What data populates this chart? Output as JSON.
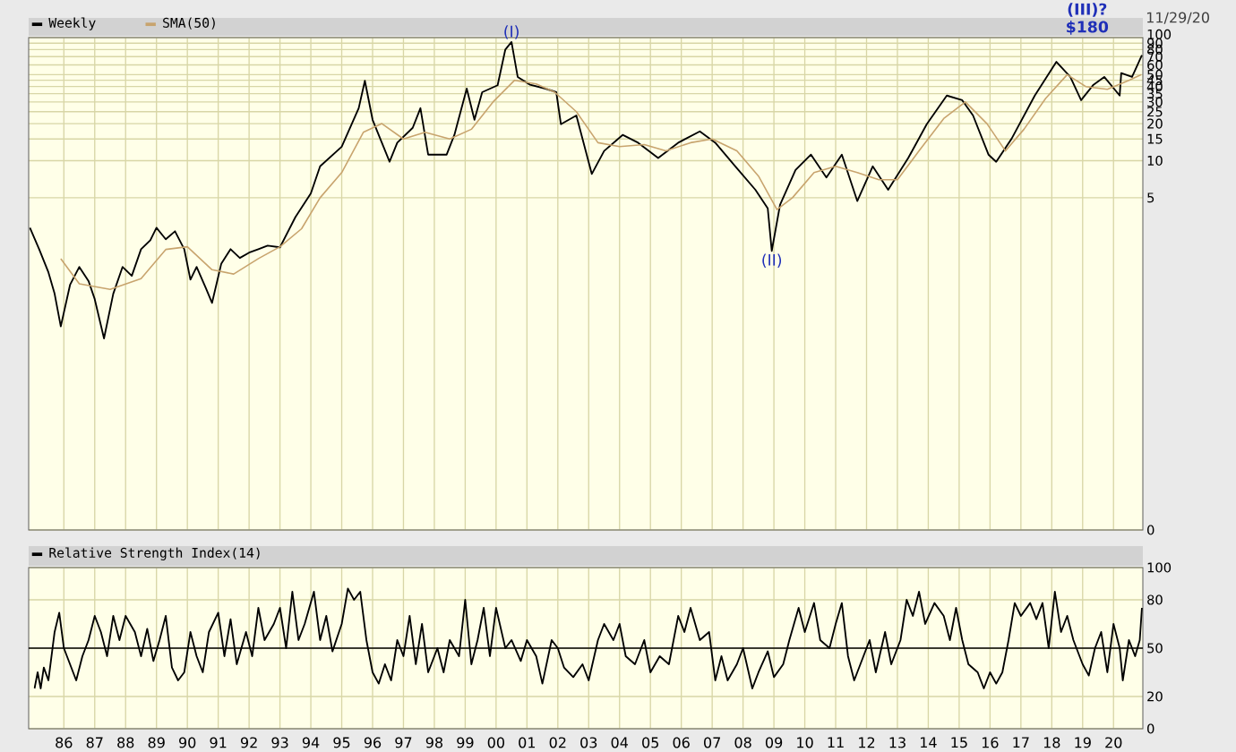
{
  "chart_data": [
    {
      "type": "line",
      "log": true,
      "grid": true,
      "tick_labels": "y",
      "legend": "top left",
      "xlim": [
        1984.86,
        2020.95
      ],
      "xticks": [
        1986,
        1987,
        1988,
        1989,
        1990,
        1991,
        1992,
        1993,
        1994,
        1995,
        1996,
        1997,
        1998,
        1999,
        2000,
        2001,
        2002,
        2003,
        2004,
        2005,
        2006,
        2007,
        2008,
        2009,
        2010,
        2011,
        2012,
        2013,
        2014,
        2015,
        2016,
        2017,
        2018,
        2019,
        2020
      ],
      "ylim": [
        0.01,
        100
      ],
      "yticks": [
        100,
        90,
        80,
        70,
        60,
        50,
        45,
        40,
        35,
        30,
        25,
        20,
        15,
        10,
        5,
        {
          "value": 0.01,
          "label": "0"
        }
      ],
      "series": [
        {
          "name": "Weekly",
          "color": "#000000",
          "x": [
            1984.9,
            1985.2,
            1985.5,
            1985.7,
            1985.9,
            1986.2,
            1986.5,
            1986.8,
            1987.0,
            1987.3,
            1987.6,
            1987.9,
            1988.2,
            1988.5,
            1988.8,
            1989.0,
            1989.3,
            1989.6,
            1989.9,
            1990.1,
            1990.3,
            1990.6,
            1990.8,
            1991.1,
            1991.4,
            1991.7,
            1992.0,
            1992.3,
            1992.6,
            1993.0,
            1993.5,
            1994.0,
            1994.3,
            1995.0,
            1995.55,
            1995.75,
            1996.0,
            1996.55,
            1996.8,
            1997.3,
            1997.55,
            1997.8,
            1998.4,
            1998.65,
            1999.05,
            1999.3,
            1999.55,
            2000.05,
            2000.3,
            2000.5,
            2000.7,
            2001.1,
            2001.6,
            2001.95,
            2002.1,
            2002.6,
            2003.1,
            2003.5,
            2004.1,
            2004.6,
            2005.25,
            2005.9,
            2006.6,
            2007.1,
            2007.75,
            2008.4,
            2008.8,
            2008.93,
            2009.2,
            2009.7,
            2010.2,
            2010.7,
            2011.2,
            2011.7,
            2012.2,
            2012.7,
            2013.35,
            2013.95,
            2014.6,
            2015.1,
            2015.45,
            2015.95,
            2016.2,
            2016.7,
            2017.45,
            2018.15,
            2018.6,
            2018.95,
            2019.35,
            2019.7,
            2020.2,
            2020.25,
            2020.6,
            2020.92
          ],
          "values": [
            2.85,
            1.91,
            1.24,
            0.83,
            0.45,
            0.98,
            1.37,
            1.05,
            0.75,
            0.36,
            0.83,
            1.37,
            1.16,
            1.91,
            2.26,
            2.85,
            2.3,
            2.67,
            1.91,
            1.08,
            1.37,
            0.92,
            0.7,
            1.46,
            1.91,
            1.62,
            1.79,
            1.91,
            2.04,
            1.98,
            3.48,
            5.43,
            9.0,
            13.0,
            26.7,
            44.6,
            21.5,
            9.8,
            14.0,
            18.5,
            26.7,
            11.2,
            11.2,
            16.2,
            38.5,
            21.5,
            36,
            41,
            80,
            92,
            47.9,
            41.4,
            38.5,
            36,
            19.8,
            23.3,
            7.8,
            12,
            16.2,
            14,
            10.5,
            14,
            17.3,
            14,
            9.0,
            5.8,
            4.1,
            1.85,
            4.4,
            8.4,
            11.2,
            7.3,
            11.2,
            4.7,
            9.0,
            5.8,
            10.5,
            19.8,
            33.8,
            31,
            23.3,
            11.2,
            9.8,
            15.1,
            33.8,
            63.5,
            47.9,
            31,
            41.4,
            47.9,
            33.8,
            51.5,
            47.9,
            72
          ]
        },
        {
          "name": "SMA(50)",
          "color": "#c8a46e",
          "x": [
            1985.9,
            1986.5,
            1987.5,
            1988.5,
            1989.3,
            1990.0,
            1990.8,
            1991.5,
            1992.3,
            1993.0,
            1993.7,
            1994.3,
            1995.0,
            1995.7,
            1996.3,
            1997.0,
            1997.7,
            1998.5,
            1999.2,
            1999.9,
            2000.6,
            2001.3,
            2001.9,
            2002.6,
            2003.3,
            2004.0,
            2004.8,
            2005.5,
            2006.3,
            2007.0,
            2007.8,
            2008.5,
            2009.1,
            2009.6,
            2010.3,
            2011.0,
            2011.7,
            2012.4,
            2013.0,
            2013.7,
            2014.5,
            2015.2,
            2015.9,
            2016.5,
            2017.1,
            2017.8,
            2018.5,
            2019.1,
            2019.8,
            2020.5,
            2020.9
          ],
          "values": [
            1.6,
            1.0,
            0.9,
            1.1,
            1.9,
            2.0,
            1.3,
            1.2,
            1.6,
            2.0,
            2.8,
            5,
            8,
            17,
            20,
            15,
            17,
            15,
            18,
            30,
            45,
            42,
            36,
            25,
            14,
            13,
            13.5,
            12,
            14,
            15,
            12,
            7.5,
            4,
            5,
            8,
            9,
            8,
            7,
            7,
            12,
            22,
            30,
            20,
            12,
            18,
            32,
            50,
            40,
            38,
            45,
            50
          ]
        }
      ],
      "annotations": [
        {
          "text": "(I)",
          "x": 2000.5,
          "y": 92
        },
        {
          "text": "(II)",
          "x": 2008.93,
          "y": 1.85
        },
        "(III)?",
        "$180",
        "11/29/20"
      ]
    },
    {
      "type": "line",
      "grid": true,
      "legend": "top left",
      "xlim": [
        1984.86,
        2020.95
      ],
      "xticks": [
        {
          "value": 1986,
          "label": "86"
        },
        {
          "value": 1987,
          "label": "87"
        },
        {
          "value": 1988,
          "label": "88"
        },
        {
          "value": 1989,
          "label": "89"
        },
        {
          "value": 1990,
          "label": "90"
        },
        {
          "value": 1991,
          "label": "91"
        },
        {
          "value": 1992,
          "label": "92"
        },
        {
          "value": 1993,
          "label": "93"
        },
        {
          "value": 1994,
          "label": "94"
        },
        {
          "value": 1995,
          "label": "95"
        },
        {
          "value": 1996,
          "label": "96"
        },
        {
          "value": 1997,
          "label": "97"
        },
        {
          "value": 1998,
          "label": "98"
        },
        {
          "value": 1999,
          "label": "99"
        },
        {
          "value": 2000,
          "label": "00"
        },
        {
          "value": 2001,
          "label": "01"
        },
        {
          "value": 2002,
          "label": "02"
        },
        {
          "value": 2003,
          "label": "03"
        },
        {
          "value": 2004,
          "label": "04"
        },
        {
          "value": 2005,
          "label": "05"
        },
        {
          "value": 2006,
          "label": "06"
        },
        {
          "value": 2007,
          "label": "07"
        },
        {
          "value": 2008,
          "label": "08"
        },
        {
          "value": 2009,
          "label": "09"
        },
        {
          "value": 2010,
          "label": "10"
        },
        {
          "value": 2011,
          "label": "11"
        },
        {
          "value": 2012,
          "label": "12"
        },
        {
          "value": 2013,
          "label": "13"
        },
        {
          "value": 2014,
          "label": "14"
        },
        {
          "value": 2015,
          "label": "15"
        },
        {
          "value": 2016,
          "label": "16"
        },
        {
          "value": 2017,
          "label": "17"
        },
        {
          "value": 2018,
          "label": "18"
        },
        {
          "value": 2019,
          "label": "19"
        },
        {
          "value": 2020,
          "label": "20"
        }
      ],
      "ylim": [
        0,
        100
      ],
      "yticks": [
        0,
        20,
        50,
        80,
        100
      ],
      "ref_lines": [
        {
          "axis": "y",
          "value": 50,
          "color": "#000000"
        }
      ],
      "series": [
        {
          "name": "Relative Strength Index(14)",
          "color": "#000000",
          "x": [
            1985.05,
            1985.15,
            1985.25,
            1985.35,
            1985.5,
            1985.7,
            1985.85,
            1986.0,
            1986.2,
            1986.4,
            1986.6,
            1986.8,
            1987.0,
            1987.2,
            1987.4,
            1987.6,
            1987.8,
            1988.0,
            1988.3,
            1988.5,
            1988.7,
            1988.9,
            1989.1,
            1989.3,
            1989.5,
            1989.7,
            1989.9,
            1990.1,
            1990.3,
            1990.5,
            1990.7,
            1991.0,
            1991.2,
            1991.4,
            1991.6,
            1991.9,
            1992.1,
            1992.3,
            1992.5,
            1992.8,
            1993.0,
            1993.2,
            1993.4,
            1993.6,
            1993.8,
            1994.1,
            1994.3,
            1994.5,
            1994.7,
            1995.0,
            1995.2,
            1995.4,
            1995.6,
            1995.8,
            1996.0,
            1996.2,
            1996.4,
            1996.6,
            1996.8,
            1997.0,
            1997.2,
            1997.4,
            1997.6,
            1997.8,
            1998.1,
            1998.3,
            1998.5,
            1998.8,
            1999.0,
            1999.2,
            1999.4,
            1999.6,
            1999.8,
            2000.0,
            2000.3,
            2000.5,
            2000.8,
            2001.0,
            2001.3,
            2001.5,
            2001.8,
            2002.0,
            2002.2,
            2002.5,
            2002.8,
            2003.0,
            2003.3,
            2003.5,
            2003.8,
            2004.0,
            2004.2,
            2004.5,
            2004.8,
            2005.0,
            2005.3,
            2005.6,
            2005.9,
            2006.1,
            2006.3,
            2006.6,
            2006.9,
            2007.1,
            2007.3,
            2007.5,
            2007.8,
            2008.0,
            2008.3,
            2008.5,
            2008.8,
            2009.0,
            2009.3,
            2009.5,
            2009.8,
            2010.0,
            2010.3,
            2010.5,
            2010.8,
            2011.0,
            2011.2,
            2011.4,
            2011.6,
            2011.9,
            2012.1,
            2012.3,
            2012.6,
            2012.8,
            2013.1,
            2013.3,
            2013.5,
            2013.7,
            2013.9,
            2014.2,
            2014.5,
            2014.7,
            2014.9,
            2015.1,
            2015.3,
            2015.6,
            2015.8,
            2016.0,
            2016.2,
            2016.4,
            2016.6,
            2016.8,
            2017.0,
            2017.3,
            2017.5,
            2017.7,
            2017.9,
            2018.1,
            2018.3,
            2018.5,
            2018.7,
            2019.0,
            2019.2,
            2019.4,
            2019.6,
            2019.8,
            2020.0,
            2020.2,
            2020.3,
            2020.5,
            2020.7,
            2020.85,
            2020.92
          ],
          "values": [
            25,
            35,
            25,
            38,
            30,
            60,
            72,
            50,
            40,
            30,
            45,
            55,
            70,
            60,
            45,
            70,
            55,
            70,
            60,
            45,
            62,
            42,
            55,
            70,
            38,
            30,
            35,
            60,
            45,
            35,
            60,
            72,
            45,
            68,
            40,
            60,
            45,
            75,
            55,
            65,
            75,
            50,
            85,
            55,
            65,
            85,
            55,
            70,
            48,
            65,
            87,
            80,
            85,
            55,
            35,
            28,
            40,
            30,
            55,
            45,
            70,
            40,
            65,
            35,
            50,
            35,
            55,
            45,
            80,
            40,
            55,
            75,
            45,
            75,
            50,
            55,
            42,
            55,
            45,
            28,
            55,
            50,
            38,
            32,
            40,
            30,
            55,
            65,
            55,
            65,
            45,
            40,
            55,
            35,
            45,
            40,
            70,
            60,
            75,
            55,
            60,
            30,
            45,
            30,
            40,
            50,
            25,
            35,
            48,
            32,
            40,
            55,
            75,
            60,
            78,
            55,
            50,
            65,
            78,
            45,
            30,
            45,
            55,
            35,
            60,
            40,
            55,
            80,
            70,
            85,
            65,
            78,
            70,
            55,
            75,
            55,
            40,
            35,
            25,
            35,
            28,
            35,
            55,
            78,
            70,
            78,
            68,
            78,
            50,
            85,
            60,
            70,
            55,
            40,
            33,
            50,
            60,
            35,
            65,
            50,
            30,
            55,
            45,
            55,
            75
          ]
        }
      ]
    }
  ]
}
